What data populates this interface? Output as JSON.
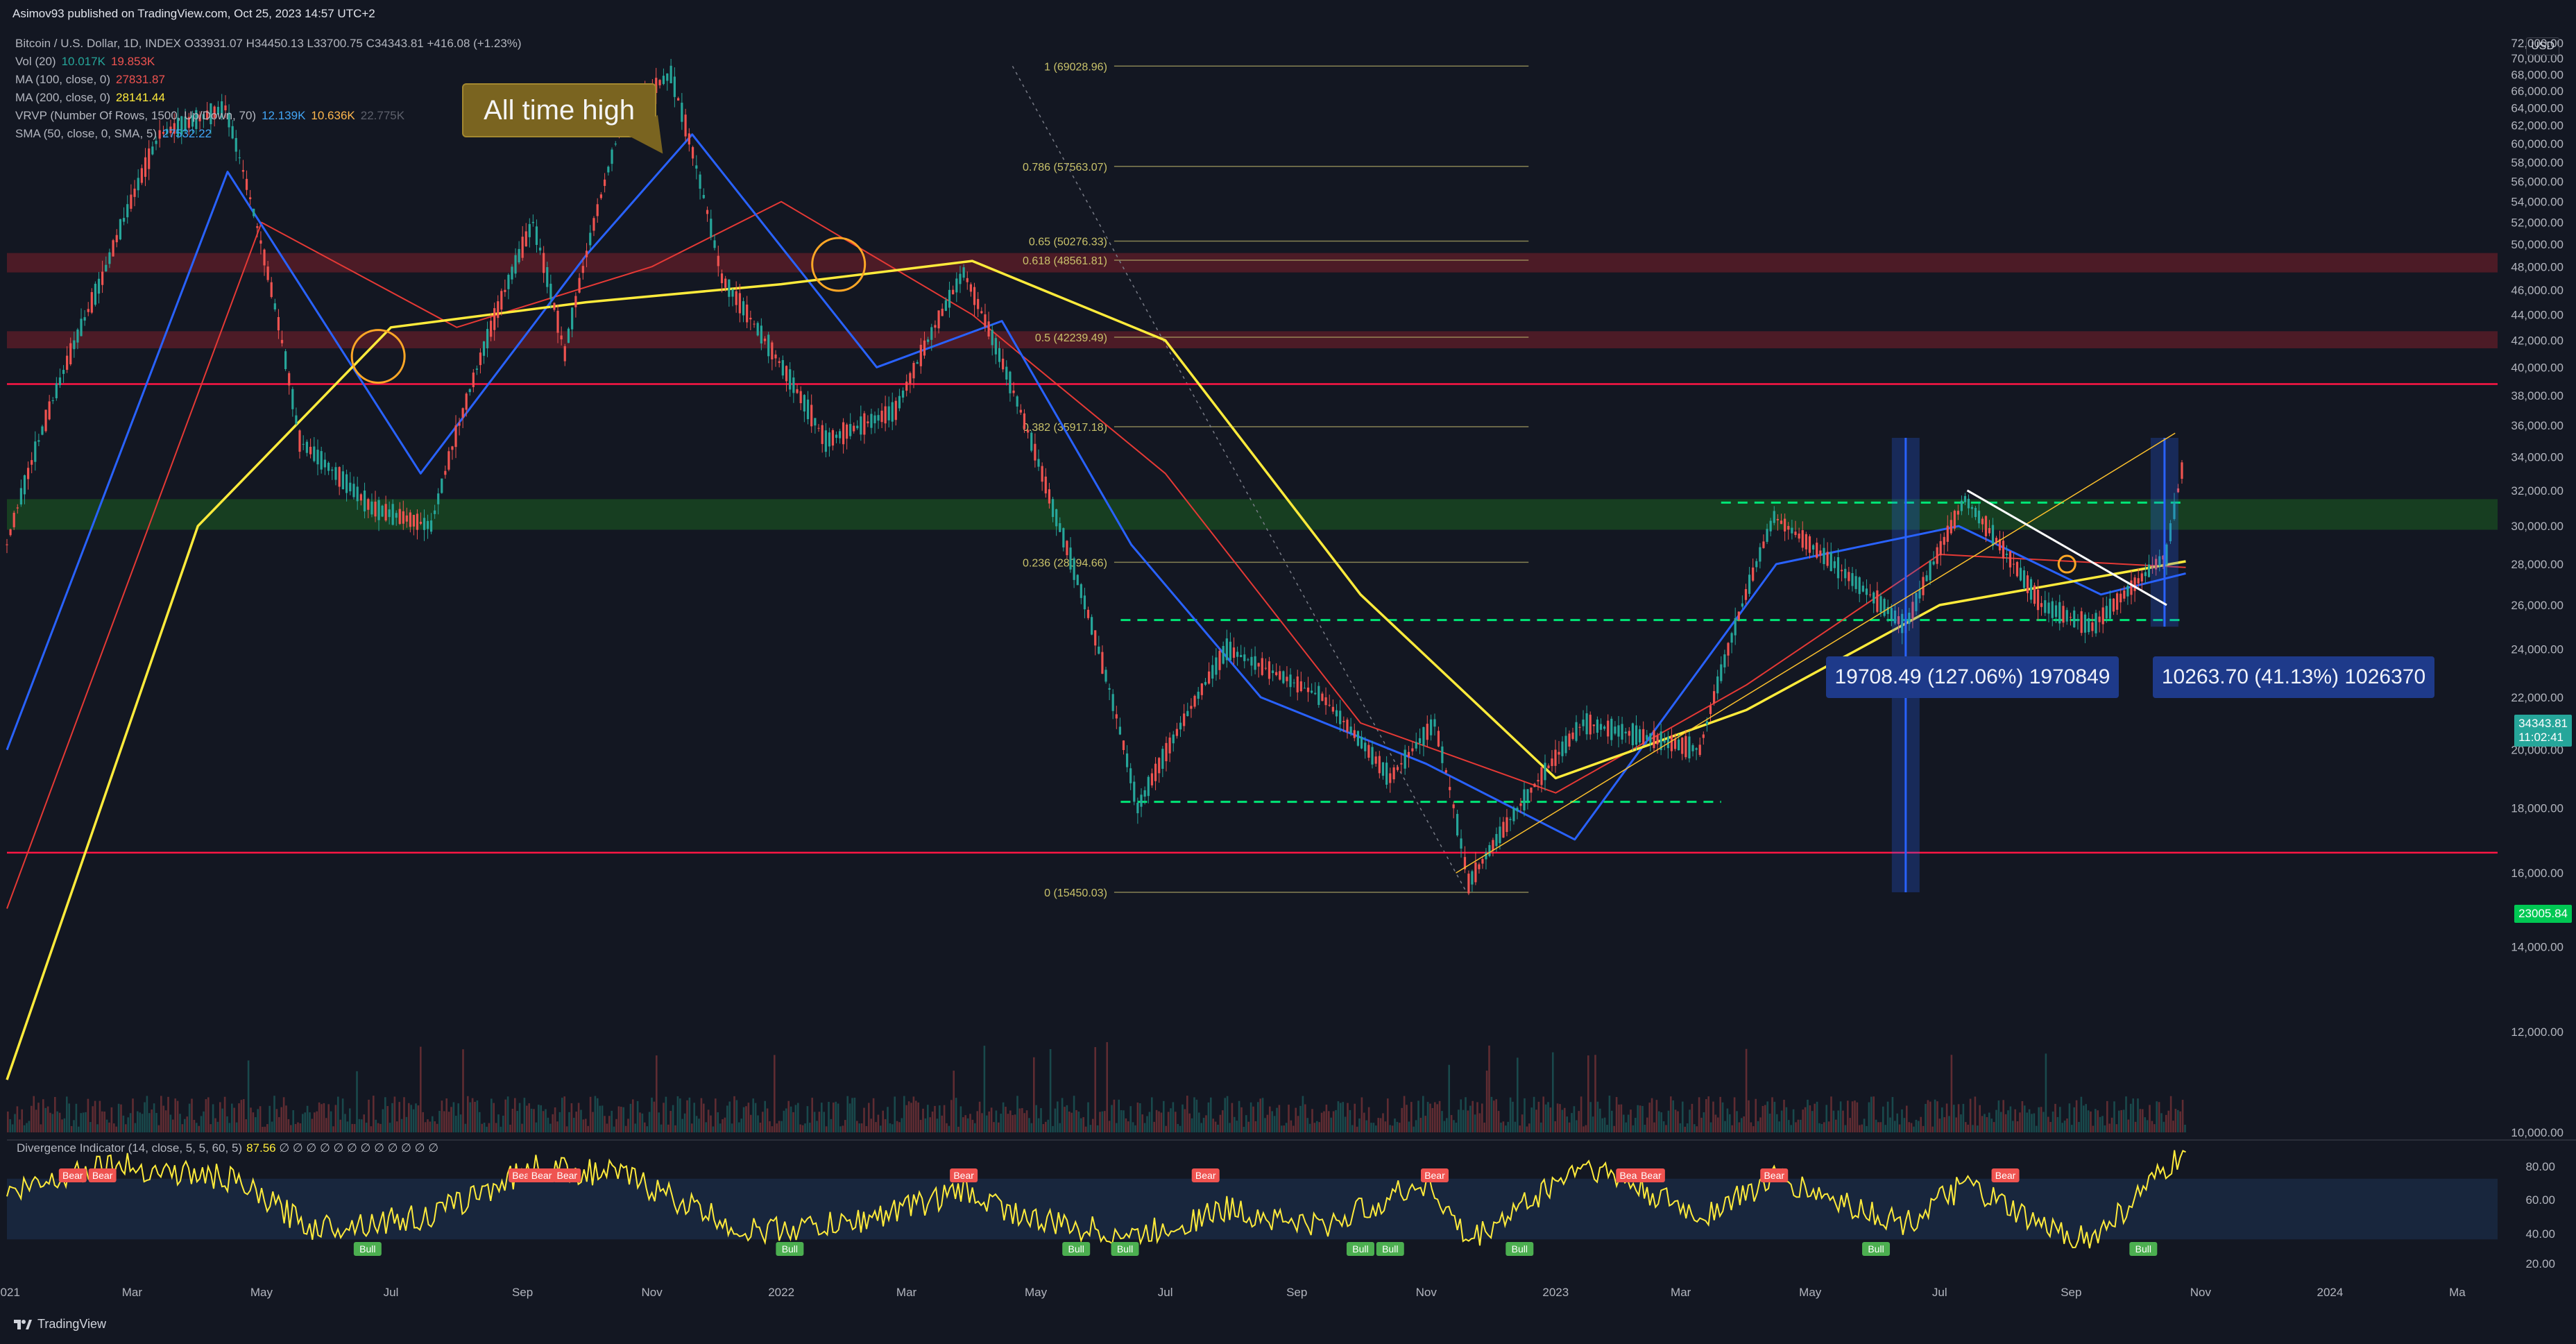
{
  "header": {
    "published": "Asimov93 published on TradingView.com, Oct 25, 2023 14:57 UTC+2",
    "symbol_line": "Bitcoin / U.S. Dollar, 1D, INDEX O33931.07 H34450.13 L33700.75 C34343.81 +416.08 (+1.23%)"
  },
  "legend": {
    "vol_name": "Vol (20)",
    "vol_v1": "10.017K",
    "vol_v2": "19.853K",
    "ma100_name": "MA (100, close, 0)",
    "ma100_val": "27831.87",
    "ma200_name": "MA (200, close, 0)",
    "ma200_val": "28141.44",
    "vrvp_name": "VRVP (Number Of Rows, 1500, Up/Down, 70)",
    "vrvp_v1": "12.139K",
    "vrvp_v2": "10.636K",
    "vrvp_v3": "22.775K",
    "sma_name": "SMA (50, close, 0, SMA, 5)",
    "sma_val": "27532.22"
  },
  "annotations": {
    "ath": "All time high",
    "measure_left": "19708.49 (127.06%) 1970849",
    "measure_right": "10263.70 (41.13%) 1026370"
  },
  "axis": {
    "currency": "USD",
    "last_price": "34343.81",
    "countdown": "11:02:41",
    "support_tag": "23005.84"
  },
  "oscillator": {
    "name": "Divergence Indicator (14, close, 5, 5, 60, 5)",
    "value": "87.56",
    "placeholders": "∅ ∅ ∅ ∅ ∅ ∅ ∅ ∅ ∅ ∅ ∅ ∅",
    "ticks": [
      "80.00",
      "60.00",
      "40.00",
      "20.00"
    ]
  },
  "footer": {
    "brand": "TradingView"
  },
  "colors": {
    "background": "#131722",
    "ma200": "#ffeb3b",
    "ma100": "#e53935",
    "sma50": "#2962ff",
    "up": "#26a69a",
    "down": "#ef5350",
    "fib": "#787b86",
    "support": "#00e676"
  },
  "chart_data": {
    "type": "line",
    "title": "Bitcoin / U.S. Dollar, 1D, INDEX",
    "ylim": [
      10000,
      74000
    ],
    "y_ticks": [
      10000,
      12000,
      14000,
      16000,
      18000,
      20000,
      22000,
      24000,
      26000,
      28000,
      30000,
      32000,
      34000,
      36000,
      38000,
      40000,
      42000,
      44000,
      46000,
      48000,
      50000,
      52000,
      54000,
      56000,
      58000,
      60000,
      62000,
      64000,
      66000,
      68000,
      70000,
      72000
    ],
    "x_labels": [
      "2021",
      "Mar",
      "May",
      "Jul",
      "Sep",
      "Nov",
      "2022",
      "Mar",
      "May",
      "Jul",
      "Sep",
      "Nov",
      "2023",
      "Mar",
      "May",
      "Jul",
      "Sep",
      "Nov",
      "2024",
      "Ma"
    ],
    "x_dates": [
      "2021-01",
      "2021-03",
      "2021-05",
      "2021-07",
      "2021-09",
      "2021-11",
      "2022-01",
      "2022-03",
      "2022-05",
      "2022-07",
      "2022-09",
      "2022-11",
      "2023-01",
      "2023-03",
      "2023-05",
      "2023-07",
      "2023-09",
      "2023-11",
      "2024-01",
      "2024-03"
    ],
    "price_series": {
      "name": "Bitcoin / U.S. Dollar",
      "x": [
        "2021-01-01",
        "2021-02-15",
        "2021-03-14",
        "2021-04-14",
        "2021-05-19",
        "2021-06-22",
        "2021-07-20",
        "2021-09-06",
        "2021-09-21",
        "2021-10-20",
        "2021-11-10",
        "2021-12-04",
        "2022-01-22",
        "2022-02-24",
        "2022-03-28",
        "2022-05-09",
        "2022-06-18",
        "2022-07-30",
        "2022-09-13",
        "2022-10-15",
        "2022-11-05",
        "2022-11-21",
        "2023-01-14",
        "2023-03-10",
        "2023-04-14",
        "2023-06-15",
        "2023-07-13",
        "2023-08-18",
        "2023-09-11",
        "2023-10-16",
        "2023-10-25"
      ],
      "values": [
        29000,
        47000,
        61000,
        64000,
        35000,
        31000,
        30000,
        52000,
        41000,
        64000,
        68000,
        47000,
        35000,
        37000,
        47500,
        31000,
        18000,
        24000,
        22000,
        19000,
        21000,
        15700,
        21000,
        20000,
        30500,
        25000,
        31500,
        26000,
        25000,
        28500,
        34343.81
      ]
    },
    "ma200": {
      "name": "MA (200, close, 0)",
      "x": [
        "2021-01-01",
        "2021-04-01",
        "2021-07-01",
        "2021-10-01",
        "2022-01-01",
        "2022-04-01",
        "2022-07-01",
        "2022-10-01",
        "2023-01-01",
        "2023-04-01",
        "2023-07-01",
        "2023-10-25"
      ],
      "values": [
        11000,
        30000,
        43000,
        45000,
        46500,
        48500,
        42000,
        26500,
        19000,
        21500,
        26000,
        28141.44
      ]
    },
    "ma100": {
      "name": "MA (100, close, 0)",
      "x": [
        "2021-01-01",
        "2021-05-01",
        "2021-08-01",
        "2021-11-01",
        "2022-01-01",
        "2022-04-01",
        "2022-07-01",
        "2022-10-01",
        "2023-01-01",
        "2023-04-01",
        "2023-07-01",
        "2023-10-25"
      ],
      "values": [
        15000,
        52000,
        43000,
        48000,
        54000,
        44000,
        33000,
        21000,
        18500,
        22500,
        28500,
        27831.87
      ]
    },
    "sma50": {
      "name": "SMA (50, close, 0, SMA, 5)",
      "x": [
        "2021-01-01",
        "2021-04-15",
        "2021-07-15",
        "2021-10-01",
        "2021-11-20",
        "2022-02-15",
        "2022-04-15",
        "2022-06-15",
        "2022-08-15",
        "2022-11-01",
        "2023-01-10",
        "2023-04-15",
        "2023-07-10",
        "2023-09-15",
        "2023-10-25"
      ],
      "values": [
        20000,
        57000,
        33000,
        49000,
        61000,
        40000,
        43500,
        29000,
        22000,
        19500,
        17000,
        28000,
        30000,
        26500,
        27532.22
      ]
    },
    "fib_levels": [
      {
        "label": "1 (69028.96)",
        "value": 69028.96
      },
      {
        "label": "0.786 (57563.07)",
        "value": 57563.07
      },
      {
        "label": "0.65 (50276.33)",
        "value": 50276.33
      },
      {
        "label": "0.618 (48561.81)",
        "value": 48561.81
      },
      {
        "label": "0.5 (42239.49)",
        "value": 42239.49
      },
      {
        "label": "0.382 (35917.18)",
        "value": 35917.18
      },
      {
        "label": "0.236 (28094.66)",
        "value": 28094.66
      },
      {
        "label": "0 (15450.03)",
        "value": 15450.03
      }
    ],
    "horizontal_levels": [
      38800,
      16600
    ],
    "zones": [
      {
        "from": 47500,
        "to": 49200,
        "kind": "resistance"
      },
      {
        "from": 41400,
        "to": 42700,
        "kind": "resistance"
      },
      {
        "from": 29800,
        "to": 31500,
        "kind": "support"
      }
    ],
    "osc_series": {
      "x": [
        "2021-01-01",
        "2021-02-15",
        "2021-04-15",
        "2021-05-25",
        "2021-07-20",
        "2021-09-06",
        "2021-10-20",
        "2021-12-15",
        "2022-02-01",
        "2022-03-28",
        "2022-05-01",
        "2022-06-18",
        "2022-07-30",
        "2022-09-13",
        "2022-11-01",
        "2022-11-21",
        "2023-01-14",
        "2023-03-10",
        "2023-04-14",
        "2023-06-15",
        "2023-07-13",
        "2023-08-18",
        "2023-09-11",
        "2023-10-25"
      ],
      "values": [
        60,
        80,
        70,
        38,
        45,
        78,
        72,
        35,
        40,
        62,
        42,
        32,
        50,
        38,
        68,
        28,
        80,
        45,
        70,
        40,
        66,
        38,
        30,
        87.56
      ]
    },
    "osc_markers": [
      {
        "x": "2021-02-01",
        "label": "Bear"
      },
      {
        "x": "2021-02-15",
        "label": "Bear"
      },
      {
        "x": "2021-06-20",
        "label": "Bull"
      },
      {
        "x": "2021-09-01",
        "label": "Bear"
      },
      {
        "x": "2021-09-10",
        "label": "Bear"
      },
      {
        "x": "2021-09-22",
        "label": "Bear"
      },
      {
        "x": "2022-01-05",
        "label": "Bull"
      },
      {
        "x": "2022-03-28",
        "label": "Bear"
      },
      {
        "x": "2022-05-20",
        "label": "Bull"
      },
      {
        "x": "2022-06-12",
        "label": "Bull"
      },
      {
        "x": "2022-07-20",
        "label": "Bear"
      },
      {
        "x": "2022-10-01",
        "label": "Bull"
      },
      {
        "x": "2022-10-15",
        "label": "Bull"
      },
      {
        "x": "2022-11-05",
        "label": "Bear"
      },
      {
        "x": "2022-12-15",
        "label": "Bull"
      },
      {
        "x": "2023-02-05",
        "label": "Bear"
      },
      {
        "x": "2023-02-15",
        "label": "Bear"
      },
      {
        "x": "2023-04-14",
        "label": "Bear"
      },
      {
        "x": "2023-06-01",
        "label": "Bull"
      },
      {
        "x": "2023-08-01",
        "label": "Bear"
      },
      {
        "x": "2023-10-05",
        "label": "Bull"
      }
    ]
  }
}
